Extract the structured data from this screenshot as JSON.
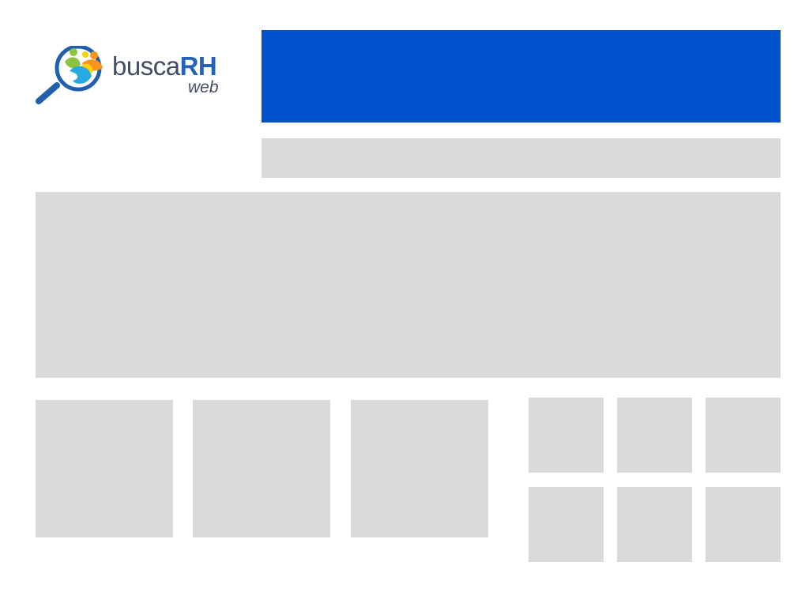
{
  "logo": {
    "word_light": "busca",
    "word_bold": "RH",
    "sub": "web",
    "colors": {
      "text_dark": "#444c62",
      "text_blue": "#2563b8",
      "magnifier": "#1f5fae",
      "green": "#8bc53f",
      "orange": "#f7941d",
      "yellow": "#ffd200",
      "cyan": "#27aae1"
    }
  },
  "colors": {
    "banner": "#0052cc",
    "placeholder": "#d9d9d9",
    "background": "#ffffff"
  }
}
